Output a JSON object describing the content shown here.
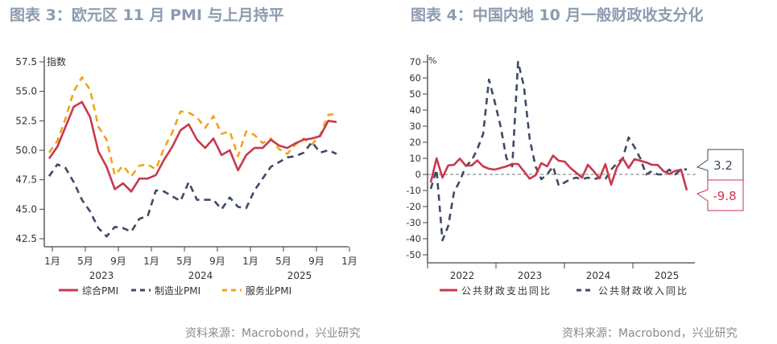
{
  "colors": {
    "composite": "#c8394f",
    "manufacturing": "#3e4a66",
    "services": "#f2a31c",
    "title": "#8c9bb0"
  },
  "chart_data": [
    {
      "type": "line",
      "title": "图表 3：欧元区 11 月 PMI 与上月持平",
      "ylabel": "指数",
      "ylim": [
        42.5,
        57.5
      ],
      "yticks": [
        "42.5",
        "45.0",
        "47.5",
        "50.0",
        "52.5",
        "55.0",
        "57.5"
      ],
      "xtick_labels": [
        "1月",
        "5月",
        "9月",
        "1月",
        "5月",
        "9月",
        "1月",
        "5月",
        "9月",
        "1月"
      ],
      "year_labels": [
        "2023",
        "2024",
        "2025"
      ],
      "x": [
        "2022-12",
        "2023-01",
        "2023-02",
        "2023-03",
        "2023-04",
        "2023-05",
        "2023-06",
        "2023-07",
        "2023-08",
        "2023-09",
        "2023-10",
        "2023-11",
        "2023-12",
        "2024-01",
        "2024-02",
        "2024-03",
        "2024-04",
        "2024-05",
        "2024-06",
        "2024-07",
        "2024-08",
        "2024-09",
        "2024-10",
        "2024-11",
        "2024-12",
        "2025-01",
        "2025-02",
        "2025-03",
        "2025-04",
        "2025-05",
        "2025-06",
        "2025-07",
        "2025-08",
        "2025-09",
        "2025-10",
        "2025-11"
      ],
      "series": [
        {
          "name": "综合PMI",
          "style": "solid",
          "color": "#c8394f",
          "values": [
            49.3,
            50.3,
            52.0,
            53.7,
            54.1,
            52.8,
            49.9,
            48.6,
            46.7,
            47.2,
            46.5,
            47.6,
            47.6,
            47.9,
            49.2,
            50.3,
            51.7,
            52.2,
            50.9,
            50.2,
            51.0,
            49.6,
            50.0,
            48.3,
            49.6,
            50.2,
            50.2,
            50.9,
            50.4,
            50.2,
            50.6,
            50.9,
            51.0,
            51.2,
            52.5,
            52.4
          ]
        },
        {
          "name": "制造业PMI",
          "style": "dashed",
          "color": "#3e4a66",
          "values": [
            47.8,
            48.8,
            48.5,
            47.3,
            45.8,
            44.8,
            43.4,
            42.7,
            43.5,
            43.4,
            43.1,
            44.2,
            44.4,
            46.6,
            46.5,
            46.1,
            45.7,
            47.3,
            45.8,
            45.8,
            45.8,
            45.0,
            46.0,
            45.2,
            45.1,
            46.6,
            47.6,
            48.6,
            49.0,
            49.4,
            49.5,
            49.8,
            50.7,
            49.8,
            50.0,
            49.7
          ]
        },
        {
          "name": "服务业PMI",
          "style": "dashed",
          "color": "#f2a31c",
          "values": [
            49.8,
            50.8,
            52.7,
            55.0,
            56.2,
            55.1,
            52.0,
            50.9,
            47.9,
            48.7,
            47.8,
            48.7,
            48.8,
            48.4,
            50.2,
            51.5,
            53.3,
            53.2,
            52.8,
            51.9,
            52.9,
            51.4,
            51.6,
            49.5,
            51.6,
            51.3,
            50.6,
            51.0,
            50.1,
            49.7,
            50.5,
            51.0,
            50.5,
            51.3,
            53.0,
            53.1
          ]
        }
      ],
      "legend": "bottom",
      "source": "资料来源：Macrobond，兴业研究"
    },
    {
      "type": "line",
      "title": "图表 4：中国内地 10 月一般财政收支分化",
      "ylabel": "%",
      "ylim": [
        -50,
        70
      ],
      "yticks": [
        "-50",
        "-40",
        "-30",
        "-20",
        "-10",
        "0",
        "10",
        "20",
        "30",
        "40",
        "50",
        "60",
        "70"
      ],
      "year_labels": [
        "2022",
        "2023",
        "2024",
        "2025"
      ],
      "x": [
        "2022-02",
        "2022-03",
        "2022-04",
        "2022-05",
        "2022-06",
        "2022-07",
        "2022-08",
        "2022-09",
        "2022-10",
        "2022-11",
        "2022-12",
        "2023-01",
        "2023-02",
        "2023-03",
        "2023-04",
        "2023-05",
        "2023-06",
        "2023-07",
        "2023-08",
        "2023-09",
        "2023-10",
        "2023-11",
        "2023-12",
        "2024-01",
        "2024-02",
        "2024-03",
        "2024-04",
        "2024-05",
        "2024-06",
        "2024-07",
        "2024-08",
        "2024-09",
        "2024-10",
        "2024-11",
        "2024-12",
        "2025-01",
        "2025-02",
        "2025-03",
        "2025-04",
        "2025-05",
        "2025-06",
        "2025-07",
        "2025-08",
        "2025-09",
        "2025-10"
      ],
      "series": [
        {
          "name": "公共财政支出同比",
          "style": "solid",
          "color": "#c8394f",
          "values": [
            -5,
            10,
            -2,
            5.6,
            6,
            9.8,
            5.5,
            5.5,
            8.7,
            5,
            3.5,
            3,
            4,
            5,
            6.5,
            6.5,
            2,
            -2.7,
            -0.5,
            7,
            5,
            11.7,
            8.5,
            8,
            4,
            1,
            -2,
            6,
            2,
            -2.5,
            6.4,
            -6.4,
            4.5,
            10,
            4,
            9.5,
            8.5,
            7.5,
            6,
            5.9,
            2,
            0.3,
            2.2,
            3,
            -9.8
          ]
        },
        {
          "name": "公共财政收入同比",
          "style": "dashed",
          "color": "#3e4a66",
          "values": [
            -9,
            3,
            -41,
            -32,
            -11,
            -4,
            5,
            8.5,
            15.7,
            25,
            59,
            45,
            30,
            10,
            5,
            70,
            55,
            22,
            5,
            -3,
            0,
            5,
            -7,
            -5,
            -3,
            -2,
            -3,
            -2,
            -3,
            -2,
            -3,
            3,
            7,
            10,
            23,
            17,
            10,
            0,
            2,
            0,
            0,
            3,
            0,
            3,
            3.2
          ]
        }
      ],
      "zero_line": true,
      "annotations": [
        {
          "label": "3.2",
          "series": "公共财政收入同比"
        },
        {
          "label": "-9.8",
          "series": "公共财政支出同比"
        }
      ],
      "legend": "bottom",
      "source": "资料来源：Macrobond，兴业研究"
    }
  ]
}
